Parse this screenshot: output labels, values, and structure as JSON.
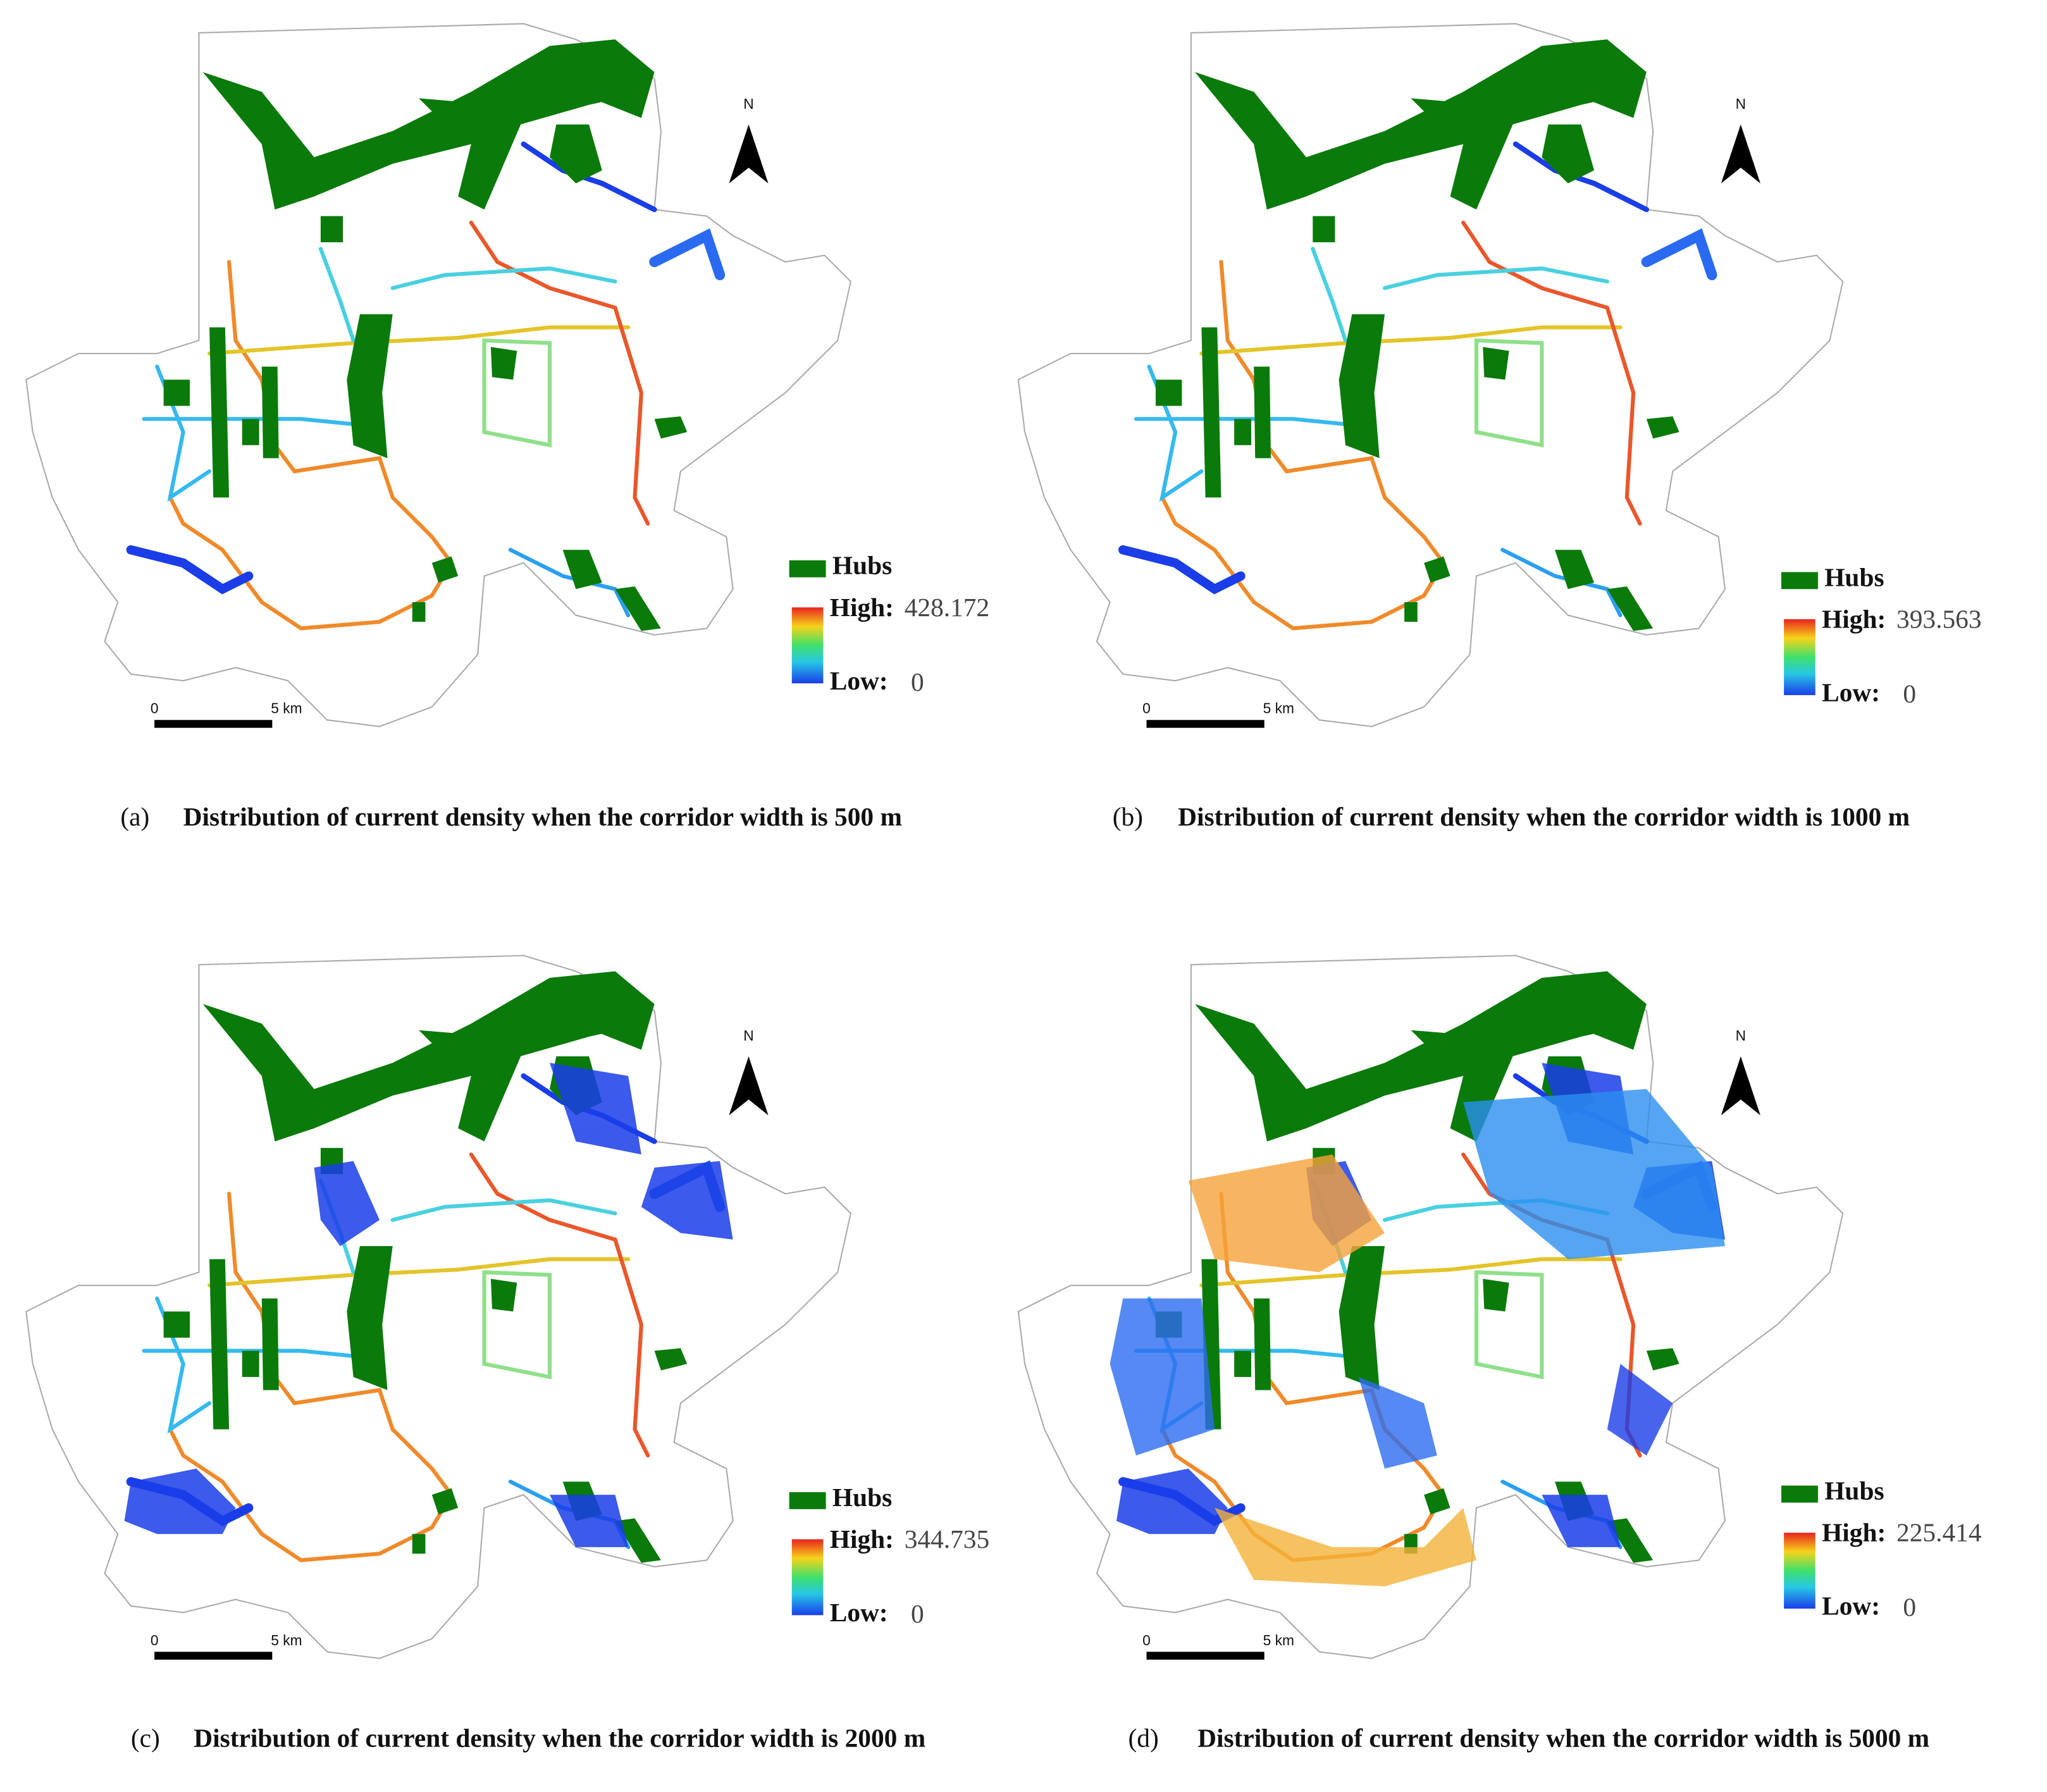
{
  "panels": [
    {
      "label": "(a)",
      "caption": "Distribution of current density when the corridor width is 500 m",
      "legend": {
        "hubs": "Hubs",
        "high_label": "High:",
        "high_value": 428.172,
        "low_label": "Low:",
        "low_value": 0
      },
      "scale_bar": {
        "start": "0",
        "end": "5 km"
      },
      "north": "N"
    },
    {
      "label": "(b)",
      "caption": "Distribution of current density when the corridor width is 1000 m",
      "legend": {
        "hubs": "Hubs",
        "high_label": "High:",
        "high_value": 393.563,
        "low_label": "Low:",
        "low_value": 0
      },
      "scale_bar": {
        "start": "0",
        "end": "5 km"
      },
      "north": "N"
    },
    {
      "label": "(c)",
      "caption": "Distribution of current density when the corridor width is 2000 m",
      "legend": {
        "hubs": "Hubs",
        "high_label": "High:",
        "high_value": 344.735,
        "low_label": "Low:",
        "low_value": 0
      },
      "scale_bar": {
        "start": "0",
        "end": "5 km"
      },
      "north": "N"
    },
    {
      "label": "(d)",
      "caption": "Distribution of current density when the corridor width is 5000 m",
      "legend": {
        "hubs": "Hubs",
        "high_label": "High:",
        "high_value": 225.414,
        "low_label": "Low:",
        "low_value": 0
      },
      "scale_bar": {
        "start": "0",
        "end": "5 km"
      },
      "north": "N"
    }
  ]
}
